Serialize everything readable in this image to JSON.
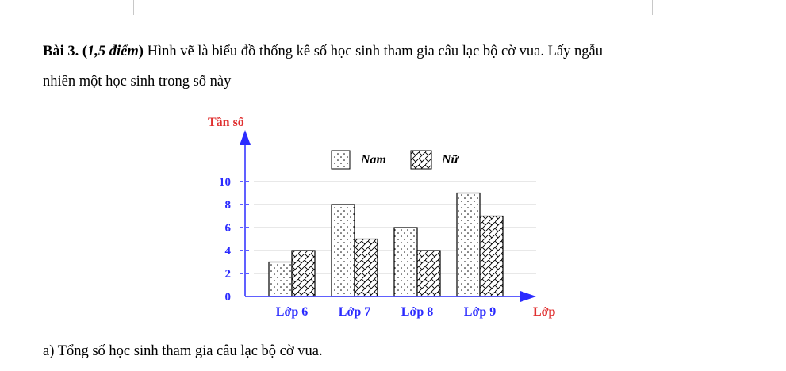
{
  "problem": {
    "label": "Bài 3.",
    "points": "1,5 điểm",
    "intro": "Hình vẽ là biểu đồ thống kê số học sinh tham gia câu lạc bộ cờ vua. Lấy ngẫu",
    "intro_cont": "nhiên một học sinh trong số này",
    "question_a": "a) Tổng số học sinh tham gia câu lạc bộ cờ vua."
  },
  "chart_data": {
    "type": "bar",
    "title": "",
    "ylabel": "Tần số",
    "xlabel": "Lớp",
    "categories": [
      "Lớp 6",
      "Lớp 7",
      "Lớp 8",
      "Lớp 9"
    ],
    "series": [
      {
        "name": "Nam",
        "values": [
          3,
          8,
          6,
          9
        ],
        "pattern": "dots"
      },
      {
        "name": "Nữ",
        "values": [
          4,
          5,
          4,
          7
        ],
        "pattern": "crosshatch"
      }
    ],
    "yticks": [
      "0",
      "2",
      "4",
      "6",
      "8",
      "10"
    ],
    "ylim": [
      0,
      10
    ],
    "grid": true,
    "legend": "top",
    "colors": {
      "axis": "#2b2bff",
      "axis_labels": "#e03030",
      "tick_labels": "#2b2bff",
      "grid": "#d0d0d0"
    }
  }
}
